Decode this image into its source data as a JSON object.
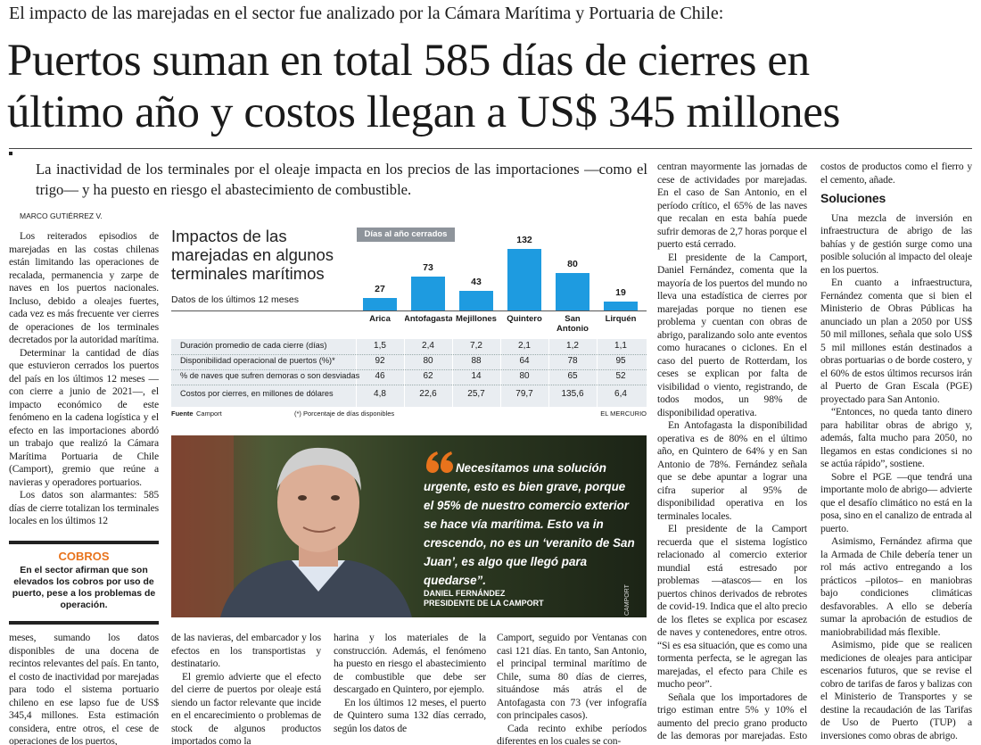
{
  "kicker": "El impacto de las marejadas en el sector fue analizado por la Cámara Marítima y Portuaria de Chile:",
  "headline": [
    "Puertos suman en total 585 días de cierres en",
    "último año y costos llegan a US$ 345 millones"
  ],
  "deck": "La inactividad de los terminales por el oleaje impacta en los precios de las importaciones —como el trigo— y ha puesto en riesgo el abastecimiento de combustible.",
  "byline": "MARCO GUTIÉRREZ V.",
  "columns": [
    [
      {
        "p": "Los reiterados episodios de marejadas en las costas chilenas están limitando las operaciones de recalada, permanencia y zarpe de naves en los puertos nacionales. Incluso, debido a oleajes fuertes, cada vez es más frecuente ver cierres de operaciones de los terminales decretados por la autoridad marítima."
      },
      {
        "p": "Determinar la cantidad de días que estuvieron cerrados los puertos del país en los últimos 12 meses —con cierre a junio de 2021—, el impacto económico de este fenómeno en la cadena logística y el efecto en las importaciones abordó un trabajo que realizó la Cámara Marítima Portuaria de Chile (Camport), gremio que reúne a navieras y operadores portuarios."
      },
      {
        "p": "Los datos son alarmantes: 585 días de cierre totalizan los terminales locales en los últimos 12"
      }
    ],
    [
      {
        "p": "meses, sumando los datos disponibles de una docena de recintos relevantes del país. En tanto, el costo de inactividad por marejadas para todo el sistema portuario chileno en ese lapso fue de US$ 345,4 millones. Esta estimación considera, entre otros, el cese de operaciones de los puertos,"
      }
    ],
    [
      {
        "p": "de las navieras, del embarcador y los efectos en los transportistas y destinatario."
      },
      {
        "p": "El gremio advierte que el efecto del cierre de puertos por oleaje está siendo un factor relevante que incide en el encarecimiento o problemas de stock de algunos productos importados como la"
      }
    ],
    [
      {
        "p": "harina y los materiales de la construcción. Además, el fenómeno ha puesto en riesgo el abastecimiento de combustible que debe ser descargado en Quintero, por ejemplo."
      },
      {
        "p": "En los últimos 12 meses, el puerto de Quintero suma 132 días cerrado, según los datos de"
      }
    ],
    [
      {
        "p": "Camport, seguido por Ventanas con casi 121 días. En tanto, San Antonio, el principal terminal marítimo de Chile, suma 80 días de cierres, situándose más atrás el de Antofagasta con 73 (ver infografía con principales casos)."
      },
      {
        "p": "Cada recinto exhibe períodos diferentes en los cuales se con-"
      }
    ],
    [
      {
        "p": "centran mayormente las jornadas de cese de actividades por marejadas. En el caso de San Antonio, en el período crítico, el 65% de las naves que recalan en esta bahía puede sufrir demoras de 2,7 horas porque el puerto está cerrado."
      },
      {
        "p": "El presidente de la Camport, Daniel Fernández, comenta que la mayoría de los puertos del mundo no lleva una estadística de cierres por marejadas porque no tienen ese problema y cuentan con obras de abrigo, paralizando solo ante eventos como huracanes o ciclones. En el caso del puerto de Rotterdam, los ceses se explican por falta de visibilidad o viento, registrando, de todos modos, un 98% de disponibilidad operativa."
      },
      {
        "p": "En Antofagasta la disponibilidad operativa es de 80% en el último año, en Quintero de 64% y en San Antonio de 78%. Fernández señala que se debe apuntar a lograr una cifra superior al 95% de disponibilidad operativa en los terminales locales."
      },
      {
        "p": "El presidente de la Camport recuerda que el sistema logístico relacionado al comercio exterior mundial está estresado por problemas —atascos— en los puertos chinos derivados de rebrotes de covid-19. Indica que el alto precio de los fletes se explica por escasez de naves y contenedores, entre otros. “Si es esa situación, que es como una tormenta perfecta, se le agregan las marejadas, el efecto para Chile es mucho peor”."
      },
      {
        "p": "Señala que los importadores de trigo estiman entre 5% y 10% el aumento del precio grano producto de las demoras por marejadas. Esto también incide en"
      }
    ],
    [
      {
        "p": "costos de productos como el fierro y el cemento, añade."
      },
      {
        "h": "Soluciones"
      },
      {
        "p": "Una mezcla de inversión en infraestructura de abrigo de las bahías y de gestión surge como una posible solución al impacto del oleaje en los puertos."
      },
      {
        "p": "En cuanto a infraestructura, Fernández comenta que si bien el Ministerio de Obras Públicas ha anunciado un plan a 2050 por US$ 50 mil millones, señala que solo US$ 5 mil millones están destinados a obras portuarias o de borde costero, y el 60% de estos últimos recursos irán al Puerto de Gran Escala (PGE) proyectado para San Antonio."
      },
      {
        "p": "“Entonces, no queda tanto dinero para habilitar obras de abrigo y, además, falta mucho para 2050, no llegamos en estas condiciones si no se actúa rápido”, sostiene."
      },
      {
        "p": "Sobre el PGE —que tendrá una importante molo de abrigo— advierte que el desafío climático no está en la posa, sino en el canalizo de entrada al puerto."
      },
      {
        "p": "Asimismo, Fernández afirma que la Armada de Chile debería tener un rol más activo entregando a los prácticos –pilotos– en maniobras bajo condiciones climáticas desfavorables. A ello se debería sumar la aprobación de estudios de maniobrabilidad más flexible."
      },
      {
        "p": "Asimismo, pide que se realicen mediciones de oleajes para anticipar escenarios futuros, que se revise el cobro de tarifas de faros y balizas con el Ministerio de Transportes y se destine la recaudación de las Tarifas de Uso de Puerto (TUP) a inversiones como obras de abrigo."
      }
    ]
  ],
  "sidebar": {
    "title": "COBROS",
    "text": "En el sector afirman que son elevados los cobros por uso de puerto, pese a los problemas de operación."
  },
  "infographic": {
    "type": "bar",
    "title": "Impactos de las marejadas en algunos terminales marítimos",
    "subtitle": "Datos de los últimos 12 meses",
    "legend": "Días al año cerrados",
    "color": "#1e9be0",
    "categories": [
      "Arica",
      "Antofagasta",
      "Mejillones",
      "Quintero",
      "San Antonio",
      "Lirquén"
    ],
    "values": [
      27,
      73,
      43,
      132,
      80,
      19
    ],
    "rows": [
      {
        "label": "Duración promedio de cada cierre (días)",
        "cells": [
          "1,5",
          "2,4",
          "7,2",
          "2,1",
          "1,2",
          "1,1"
        ]
      },
      {
        "label": "Disponibilidad operacional de puertos (%)*",
        "cells": [
          "92",
          "80",
          "88",
          "64",
          "78",
          "95"
        ]
      },
      {
        "label": "% de naves que sufren demoras o son desviadas",
        "cells": [
          "46",
          "62",
          "14",
          "80",
          "65",
          "52"
        ]
      },
      {
        "label": "Costos por cierres, en millones de dólares",
        "cells": [
          "4,8",
          "22,6",
          "25,7",
          "79,7",
          "135,6",
          "6,4"
        ]
      }
    ],
    "source_label": "Fuente",
    "source": "Camport",
    "note": "(*) Porcentaje de días disponibles",
    "credit": "EL MERCURIO"
  },
  "quote": {
    "text": "Necesitamos una solución urgente, esto es bien grave, porque el 95% de nuestro comercio exterior se hace vía marítima. Esto va in crescendo, no es un ‘veranito de San Juan’, es algo que llegó para quedarse”.",
    "name": "DANIEL FERNÁNDEZ",
    "role": "PRESIDENTE DE LA CAMPORT",
    "photo_credit": "CAMPORT"
  }
}
